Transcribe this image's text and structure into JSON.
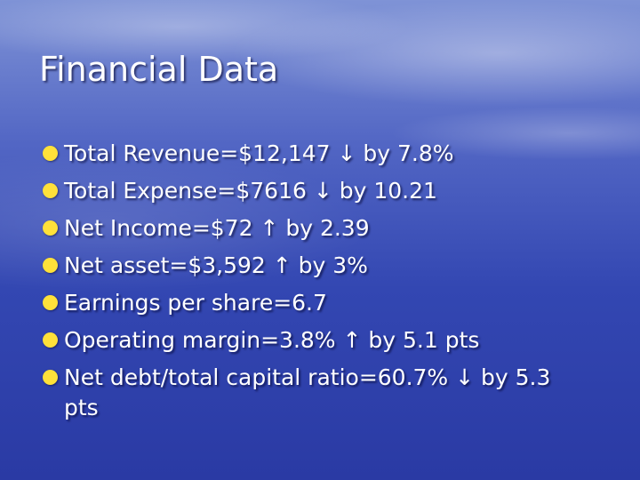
{
  "title": "Financial Data",
  "bullets": [
    "Total Revenue=$12,147 ↓ by 7.8%",
    "Total Expense=$7616 ↓ by 10.21",
    "Net Income=$72 ↑ by 2.39",
    "Net asset=$3,592 ↑ by 3%",
    "Earnings per share=6.7",
    "Operating margin=3.8% ↑ by 5.1 pts",
    "Net debt/total capital ratio=60.7% ↓ by 5.3 pts"
  ]
}
